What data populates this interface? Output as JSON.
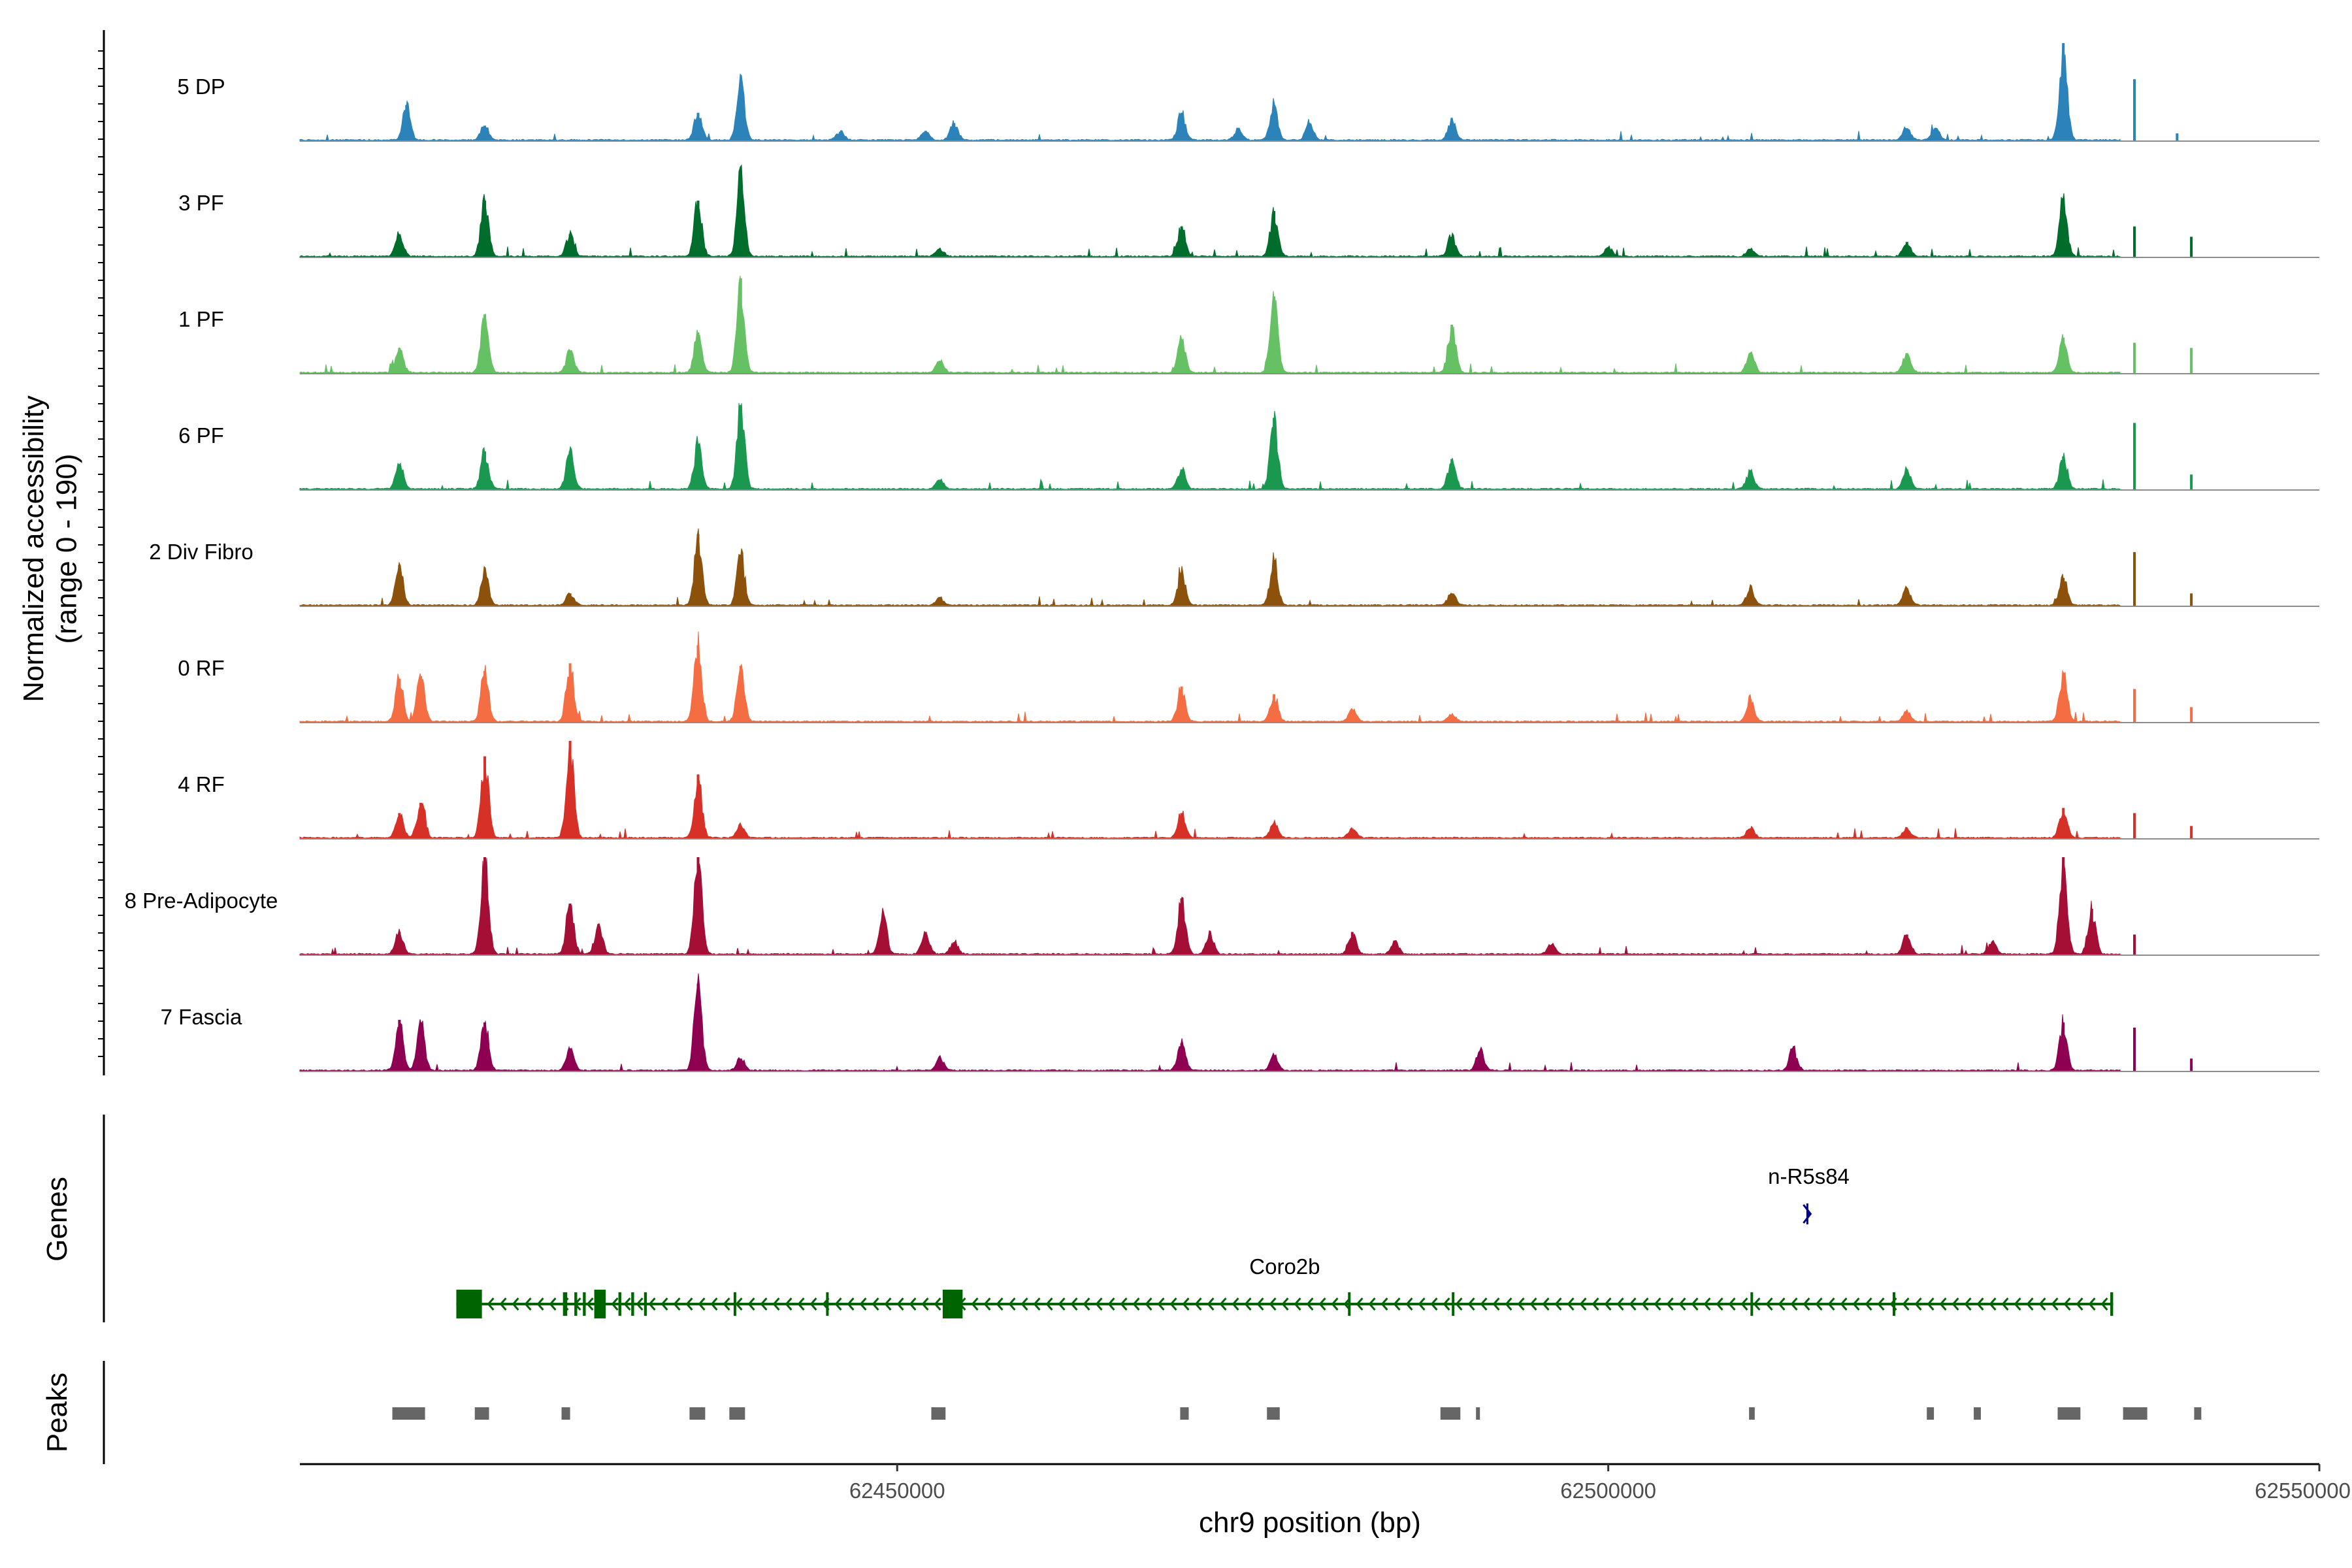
{
  "chart_data": {
    "type": "area",
    "title": "",
    "ylabel": "Normalized accessibility\n(range 0 - 190)",
    "xlabel": "chr9 position (bp)",
    "xlim": [
      62408000,
      62550000
    ],
    "ylim": [
      0,
      190
    ],
    "data_extent": [
      62408000,
      62536000
    ],
    "x_ticks": [
      {
        "value": 62450000,
        "label": "62450000"
      },
      {
        "value": 62500000,
        "label": "62500000"
      },
      {
        "value": 62550000,
        "label": "62550000"
      }
    ],
    "series": [
      {
        "name": "5 DP",
        "color": "#2b83ba",
        "peaks": [
          [
            62415500,
            70
          ],
          [
            62421000,
            30
          ],
          [
            62436000,
            55
          ],
          [
            62439000,
            115
          ],
          [
            62446000,
            18
          ],
          [
            62452000,
            20
          ],
          [
            62454000,
            35
          ],
          [
            62470000,
            55
          ],
          [
            62474000,
            22
          ],
          [
            62476500,
            70
          ],
          [
            62479000,
            35
          ],
          [
            62489000,
            40
          ],
          [
            62521000,
            25
          ],
          [
            62523000,
            25
          ],
          [
            62532000,
            190
          ],
          [
            62537000,
            120
          ],
          [
            62540000,
            15
          ]
        ]
      },
      {
        "name": "3 PF",
        "color": "#006d2c",
        "peaks": [
          [
            62415000,
            45
          ],
          [
            62421000,
            110
          ],
          [
            62427000,
            45
          ],
          [
            62436000,
            110
          ],
          [
            62439000,
            160
          ],
          [
            62453000,
            15
          ],
          [
            62470000,
            60
          ],
          [
            62476500,
            90
          ],
          [
            62489000,
            40
          ],
          [
            62500000,
            20
          ],
          [
            62510000,
            15
          ],
          [
            62521000,
            30
          ],
          [
            62532000,
            115
          ],
          [
            62537000,
            60
          ],
          [
            62541000,
            40
          ]
        ]
      },
      {
        "name": "1 PF",
        "color": "#66c164",
        "peaks": [
          [
            62415000,
            50
          ],
          [
            62421000,
            115
          ],
          [
            62427000,
            45
          ],
          [
            62436000,
            80
          ],
          [
            62439000,
            185
          ],
          [
            62453000,
            25
          ],
          [
            62470000,
            65
          ],
          [
            62476500,
            150
          ],
          [
            62489000,
            95
          ],
          [
            62510000,
            40
          ],
          [
            62521000,
            40
          ],
          [
            62532000,
            70
          ],
          [
            62537000,
            60
          ],
          [
            62541000,
            50
          ]
        ]
      },
      {
        "name": "6 PF",
        "color": "#1a9850",
        "peaks": [
          [
            62415000,
            50
          ],
          [
            62421000,
            75
          ],
          [
            62427000,
            75
          ],
          [
            62436000,
            90
          ],
          [
            62439000,
            165
          ],
          [
            62453000,
            20
          ],
          [
            62470000,
            40
          ],
          [
            62476500,
            140
          ],
          [
            62489000,
            60
          ],
          [
            62510000,
            35
          ],
          [
            62521000,
            40
          ],
          [
            62532000,
            65
          ],
          [
            62537000,
            130
          ],
          [
            62541000,
            30
          ]
        ]
      },
      {
        "name": "2 Div Fibro",
        "color": "#8c510a",
        "peaks": [
          [
            62415000,
            80
          ],
          [
            62421000,
            65
          ],
          [
            62427000,
            25
          ],
          [
            62436000,
            140
          ],
          [
            62439000,
            100
          ],
          [
            62453000,
            15
          ],
          [
            62470000,
            65
          ],
          [
            62476500,
            90
          ],
          [
            62489000,
            25
          ],
          [
            62510000,
            35
          ],
          [
            62521000,
            35
          ],
          [
            62532000,
            55
          ],
          [
            62537000,
            105
          ],
          [
            62541000,
            25
          ]
        ]
      },
      {
        "name": "0 RF",
        "color": "#f46d43",
        "peaks": [
          [
            62415000,
            85
          ],
          [
            62416500,
            90
          ],
          [
            62421000,
            100
          ],
          [
            62427000,
            115
          ],
          [
            62436000,
            150
          ],
          [
            62439000,
            110
          ],
          [
            62470000,
            70
          ],
          [
            62476500,
            55
          ],
          [
            62482000,
            25
          ],
          [
            62489000,
            15
          ],
          [
            62510000,
            45
          ],
          [
            62521000,
            20
          ],
          [
            62532000,
            95
          ],
          [
            62537000,
            65
          ],
          [
            62541000,
            30
          ]
        ]
      },
      {
        "name": "4 RF",
        "color": "#d73027",
        "peaks": [
          [
            62415000,
            50
          ],
          [
            62416500,
            70
          ],
          [
            62421000,
            160
          ],
          [
            62427000,
            190
          ],
          [
            62436000,
            125
          ],
          [
            62439000,
            25
          ],
          [
            62470000,
            50
          ],
          [
            62476500,
            30
          ],
          [
            62482000,
            20
          ],
          [
            62510000,
            20
          ],
          [
            62521000,
            20
          ],
          [
            62532000,
            60
          ],
          [
            62537000,
            50
          ],
          [
            62541000,
            25
          ]
        ]
      },
      {
        "name": "8 Pre-Adipocyte",
        "color": "#a50f36",
        "peaks": [
          [
            62415000,
            45
          ],
          [
            62421000,
            190
          ],
          [
            62427000,
            100
          ],
          [
            62429000,
            60
          ],
          [
            62436000,
            190
          ],
          [
            62449000,
            80
          ],
          [
            62452000,
            45
          ],
          [
            62454000,
            25
          ],
          [
            62470000,
            110
          ],
          [
            62472000,
            40
          ],
          [
            62482000,
            45
          ],
          [
            62485000,
            25
          ],
          [
            62496000,
            20
          ],
          [
            62521000,
            40
          ],
          [
            62527000,
            25
          ],
          [
            62532000,
            190
          ],
          [
            62534000,
            90
          ],
          [
            62537000,
            40
          ]
        ]
      },
      {
        "name": "7 Fascia",
        "color": "#8e0152",
        "peaks": [
          [
            62415000,
            100
          ],
          [
            62416500,
            95
          ],
          [
            62421000,
            95
          ],
          [
            62427000,
            45
          ],
          [
            62436000,
            170
          ],
          [
            62439000,
            25
          ],
          [
            62453000,
            25
          ],
          [
            62470000,
            55
          ],
          [
            62476500,
            30
          ],
          [
            62491000,
            40
          ],
          [
            62513000,
            45
          ],
          [
            62532000,
            95
          ],
          [
            62537000,
            85
          ],
          [
            62541000,
            25
          ]
        ]
      }
    ]
  },
  "genes": {
    "label": "Genes",
    "items": [
      {
        "name": "n-R5s84",
        "strand": "+",
        "start": 62514000,
        "end": 62514200,
        "color": "#00008b"
      },
      {
        "name": "Coro2b",
        "strand": "-",
        "start": 62419000,
        "end": 62535500,
        "color": "#006400",
        "exons": [
          [
            62419000,
            62420800
          ],
          [
            62426500,
            62426800
          ],
          [
            62427300,
            62427500
          ],
          [
            62427900,
            62428100
          ],
          [
            62428700,
            62429500
          ],
          [
            62430400,
            62430600
          ],
          [
            62431300,
            62431500
          ],
          [
            62432200,
            62432400
          ],
          [
            62438500,
            62438600
          ],
          [
            62445000,
            62445100
          ],
          [
            62453200,
            62454600
          ],
          [
            62481700,
            62481800
          ],
          [
            62489000,
            62489100
          ],
          [
            62510000,
            62510100
          ],
          [
            62520000,
            62520100
          ],
          [
            62535300,
            62535500
          ]
        ]
      }
    ]
  },
  "peaks_track": {
    "label": "Peaks",
    "color": "#666666",
    "regions": [
      [
        62414500,
        62416800
      ],
      [
        62420300,
        62421300
      ],
      [
        62426400,
        62427000
      ],
      [
        62435400,
        62436500
      ],
      [
        62438200,
        62439300
      ],
      [
        62452400,
        62453400
      ],
      [
        62469900,
        62470500
      ],
      [
        62476000,
        62476900
      ],
      [
        62488200,
        62489600
      ],
      [
        62490700,
        62490900
      ],
      [
        62509900,
        62510300
      ],
      [
        62522400,
        62522900
      ],
      [
        62525700,
        62526200
      ],
      [
        62531600,
        62533200
      ],
      [
        62536200,
        62537900
      ],
      [
        62541200,
        62541700
      ]
    ]
  }
}
